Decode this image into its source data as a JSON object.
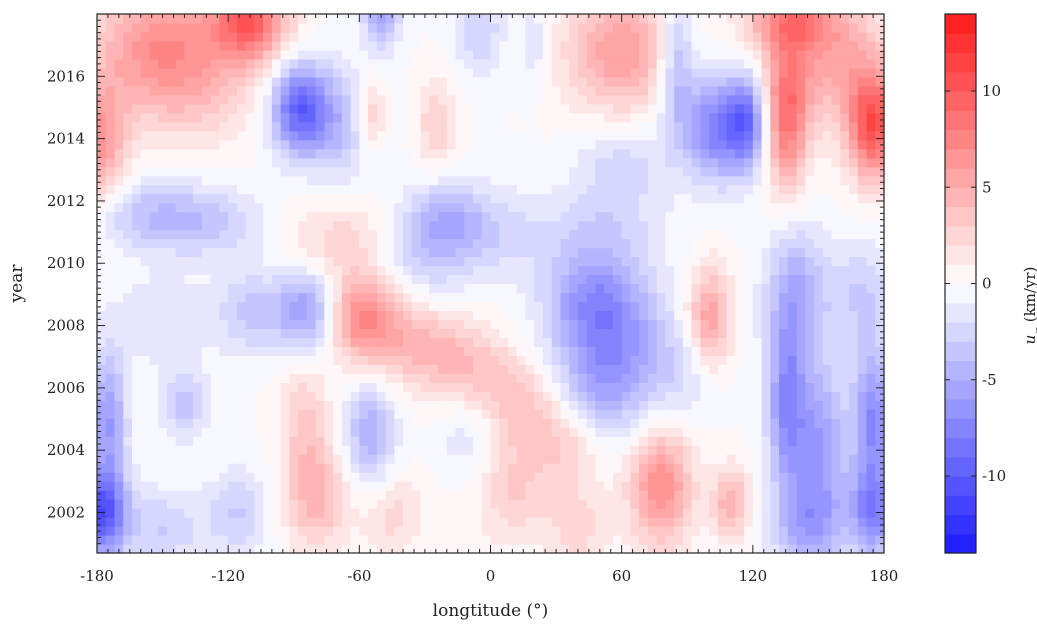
{
  "chart_data": {
    "type": "heatmap",
    "title": "",
    "xlabel": "longtitude (°)",
    "ylabel": "year",
    "colorbar_label": "u_φ (km/yr)",
    "colorbar_label_main": "u",
    "colorbar_label_sub": "φ",
    "colorbar_label_unit": " (km/yr)",
    "xlim": [
      -180,
      180
    ],
    "ylim": [
      2000.7,
      2018.0
    ],
    "clim": [
      -14,
      14
    ],
    "x_ticks": [
      -180,
      -120,
      -60,
      0,
      60,
      120,
      180
    ],
    "x_tick_labels": [
      "-180",
      "-120",
      "-60",
      "0",
      "60",
      "120",
      "180"
    ],
    "y_ticks": [
      2002,
      2004,
      2006,
      2008,
      2010,
      2012,
      2014,
      2016
    ],
    "y_tick_labels": [
      "2002",
      "2004",
      "2006",
      "2008",
      "2010",
      "2012",
      "2014",
      "2016"
    ],
    "colorbar_ticks": [
      -10,
      -5,
      0,
      5,
      10
    ],
    "colorbar_tick_labels": [
      "-10",
      "-5",
      "0",
      "5",
      "10"
    ],
    "colormap": {
      "negative": "#1a1aff",
      "zero": "#ffffff",
      "positive": "#ff1a1a"
    },
    "grid": false,
    "features": [
      {
        "lon": -150,
        "year": 2017.2,
        "amplitude": 6,
        "width_lon": 22,
        "width_year": 1.3
      },
      {
        "lon": -110,
        "year": 2017.8,
        "amplitude": 9,
        "width_lon": 12,
        "width_year": 0.9
      },
      {
        "lon": -178,
        "year": 2013.8,
        "amplitude": 6,
        "width_lon": 8,
        "width_year": 1.4
      },
      {
        "lon": -140,
        "year": 2015.5,
        "amplitude": 3,
        "width_lon": 25,
        "width_year": 1.2
      },
      {
        "lon": -160,
        "year": 2011.6,
        "amplitude": -3,
        "width_lon": 20,
        "width_year": 0.8
      },
      {
        "lon": -130,
        "year": 2011.3,
        "amplitude": -3,
        "width_lon": 20,
        "width_year": 0.8
      },
      {
        "lon": -88,
        "year": 2015.0,
        "amplitude": -9,
        "width_lon": 9,
        "width_year": 1.0
      },
      {
        "lon": -70,
        "year": 2014.5,
        "amplitude": -4,
        "width_lon": 12,
        "width_year": 1.3
      },
      {
        "lon": -55,
        "year": 2014.8,
        "amplitude": 4,
        "width_lon": 5,
        "width_year": 0.8
      },
      {
        "lon": -50,
        "year": 2017.9,
        "amplitude": -5,
        "width_lon": 6,
        "width_year": 0.7
      },
      {
        "lon": -25,
        "year": 2014.5,
        "amplitude": 3,
        "width_lon": 6,
        "width_year": 1.0
      },
      {
        "lon": -5,
        "year": 2017.5,
        "amplitude": -3,
        "width_lon": 8,
        "width_year": 1.0
      },
      {
        "lon": 20,
        "year": 2017.0,
        "amplitude": -2,
        "width_lon": 5,
        "width_year": 1.0
      },
      {
        "lon": 60,
        "year": 2016.8,
        "amplitude": 6,
        "width_lon": 18,
        "width_year": 1.4
      },
      {
        "lon": 85,
        "year": 2016.5,
        "amplitude": -5,
        "width_lon": 6,
        "width_year": 1.5
      },
      {
        "lon": 105,
        "year": 2014.4,
        "amplitude": -8,
        "width_lon": 12,
        "width_year": 1.2
      },
      {
        "lon": 118,
        "year": 2014.6,
        "amplitude": -6,
        "width_lon": 6,
        "width_year": 1.0
      },
      {
        "lon": 135,
        "year": 2014.6,
        "amplitude": 8,
        "width_lon": 7,
        "width_year": 1.6
      },
      {
        "lon": 175,
        "year": 2014.4,
        "amplitude": 10,
        "width_lon": 8,
        "width_year": 1.2
      },
      {
        "lon": 155,
        "year": 2016.5,
        "amplitude": 5,
        "width_lon": 20,
        "width_year": 1.5
      },
      {
        "lon": 138,
        "year": 2017.8,
        "amplitude": 6,
        "width_lon": 14,
        "width_year": 0.7
      },
      {
        "lon": 60,
        "year": 2013.2,
        "amplitude": -2.5,
        "width_lon": 15,
        "width_year": 1.0
      },
      {
        "lon": -70,
        "year": 2010.8,
        "amplitude": 2.5,
        "width_lon": 18,
        "width_year": 1.0
      },
      {
        "lon": -30,
        "year": 2010.3,
        "amplitude": -3,
        "width_lon": 14,
        "width_year": 1.2
      },
      {
        "lon": -20,
        "year": 2011.5,
        "amplitude": -3,
        "width_lon": 12,
        "width_year": 0.8
      },
      {
        "lon": 0,
        "year": 2011.0,
        "amplitude": -2.5,
        "width_lon": 16,
        "width_year": 1.0
      },
      {
        "lon": 50,
        "year": 2011.0,
        "amplitude": -2.5,
        "width_lon": 20,
        "width_year": 1.0
      },
      {
        "lon": -60,
        "year": 2008.3,
        "amplitude": 6,
        "width_lon": 10,
        "width_year": 1.0
      },
      {
        "lon": -45,
        "year": 2007.8,
        "amplitude": 3.5,
        "width_lon": 12,
        "width_year": 1.0
      },
      {
        "lon": -25,
        "year": 2007.2,
        "amplitude": 3.5,
        "width_lon": 12,
        "width_year": 1.0
      },
      {
        "lon": -5,
        "year": 2006.5,
        "amplitude": 3,
        "width_lon": 12,
        "width_year": 1.0
      },
      {
        "lon": 15,
        "year": 2005.5,
        "amplitude": 3,
        "width_lon": 12,
        "width_year": 1.0
      },
      {
        "lon": 35,
        "year": 2004.3,
        "amplitude": 3,
        "width_lon": 12,
        "width_year": 1.0
      },
      {
        "lon": 10,
        "year": 2002.8,
        "amplitude": 3,
        "width_lon": 12,
        "width_year": 1.3
      },
      {
        "lon": -85,
        "year": 2008.5,
        "amplitude": -6,
        "width_lon": 10,
        "width_year": 0.9
      },
      {
        "lon": -110,
        "year": 2008.5,
        "amplitude": -3,
        "width_lon": 10,
        "width_year": 1.0
      },
      {
        "lon": -150,
        "year": 2008.2,
        "amplitude": -2,
        "width_lon": 18,
        "width_year": 1.0
      },
      {
        "lon": 55,
        "year": 2007.5,
        "amplitude": -6.5,
        "width_lon": 18,
        "width_year": 1.5
      },
      {
        "lon": 45,
        "year": 2009.0,
        "amplitude": -3.5,
        "width_lon": 15,
        "width_year": 1.0
      },
      {
        "lon": 100,
        "year": 2008.2,
        "amplitude": 6,
        "width_lon": 7,
        "width_year": 1.2
      },
      {
        "lon": 90,
        "year": 2006.5,
        "amplitude": -2,
        "width_lon": 12,
        "width_year": 1.0
      },
      {
        "lon": 140,
        "year": 2009.0,
        "amplitude": -5,
        "width_lon": 10,
        "width_year": 1.6
      },
      {
        "lon": 170,
        "year": 2009.0,
        "amplitude": -3,
        "width_lon": 10,
        "width_year": 1.2
      },
      {
        "lon": 135,
        "year": 2005.5,
        "amplitude": -6,
        "width_lon": 6,
        "width_year": 1.8
      },
      {
        "lon": 150,
        "year": 2004.0,
        "amplitude": -6,
        "width_lon": 10,
        "width_year": 2.0
      },
      {
        "lon": 175,
        "year": 2005.0,
        "amplitude": -7,
        "width_lon": 6,
        "width_year": 1.6
      },
      {
        "lon": 175,
        "year": 2002.0,
        "amplitude": -7,
        "width_lon": 7,
        "width_year": 1.0
      },
      {
        "lon": 145,
        "year": 2001.5,
        "amplitude": -4,
        "width_lon": 12,
        "width_year": 1.0
      },
      {
        "lon": -178,
        "year": 2002.0,
        "amplitude": -10,
        "width_lon": 8,
        "width_year": 1.0
      },
      {
        "lon": -175,
        "year": 2005.0,
        "amplitude": -6,
        "width_lon": 6,
        "width_year": 1.5
      },
      {
        "lon": -150,
        "year": 2001.5,
        "amplitude": -3,
        "width_lon": 14,
        "width_year": 0.9
      },
      {
        "lon": -140,
        "year": 2005.5,
        "amplitude": -3.5,
        "width_lon": 8,
        "width_year": 0.8
      },
      {
        "lon": -115,
        "year": 2002.0,
        "amplitude": -3,
        "width_lon": 10,
        "width_year": 1.0
      },
      {
        "lon": -80,
        "year": 2002.5,
        "amplitude": 4.5,
        "width_lon": 10,
        "width_year": 1.2
      },
      {
        "lon": -85,
        "year": 2005.0,
        "amplitude": 3,
        "width_lon": 8,
        "width_year": 1.3
      },
      {
        "lon": -55,
        "year": 2004.5,
        "amplitude": -5,
        "width_lon": 8,
        "width_year": 1.2
      },
      {
        "lon": -45,
        "year": 2002.0,
        "amplitude": 2.5,
        "width_lon": 10,
        "width_year": 1.0
      },
      {
        "lon": 50,
        "year": 2005.5,
        "amplitude": -2.5,
        "width_lon": 14,
        "width_year": 1.0
      },
      {
        "lon": 78,
        "year": 2002.8,
        "amplitude": 7,
        "width_lon": 10,
        "width_year": 1.3
      },
      {
        "lon": 110,
        "year": 2002.3,
        "amplitude": 5,
        "width_lon": 6,
        "width_year": 0.8
      },
      {
        "lon": 40,
        "year": 2001.5,
        "amplitude": 2.5,
        "width_lon": 10,
        "width_year": 1.0
      },
      {
        "lon": -10,
        "year": 2004.5,
        "amplitude": -2,
        "width_lon": 10,
        "width_year": 1.0
      }
    ]
  }
}
